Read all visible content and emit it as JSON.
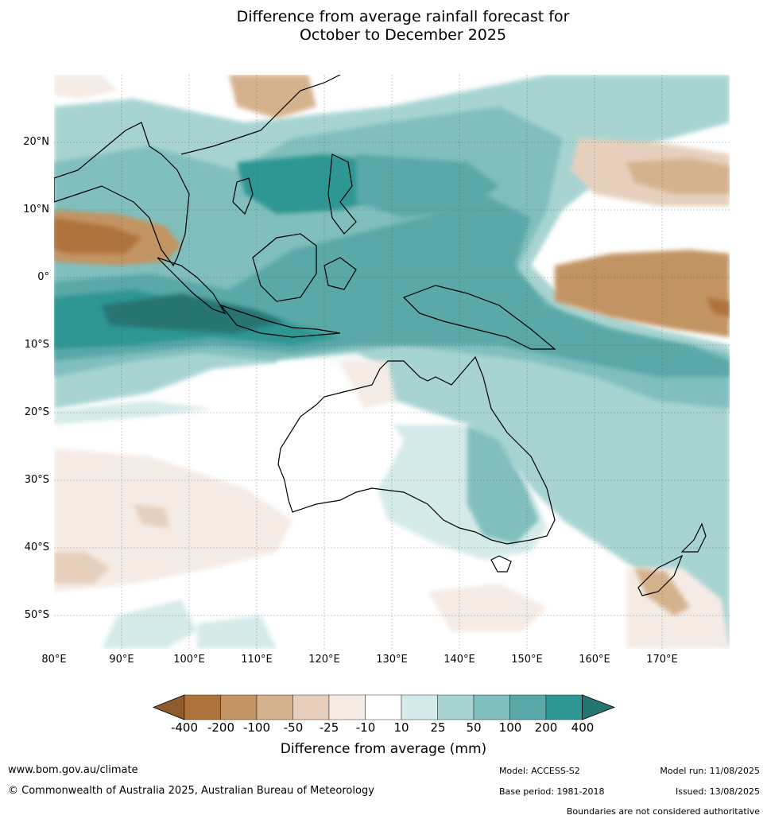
{
  "title": {
    "line1": "Difference from average rainfall forecast for",
    "line2": "October to December 2025"
  },
  "map": {
    "lat_labels": [
      "20°N",
      "10°N",
      "0°",
      "10°S",
      "20°S",
      "30°S",
      "40°S",
      "50°S"
    ],
    "lon_labels": [
      "80°E",
      "90°E",
      "100°E",
      "110°E",
      "120°E",
      "130°E",
      "140°E",
      "150°E",
      "160°E",
      "170°E"
    ]
  },
  "colorbar": {
    "tick_labels": [
      "-400",
      "-200",
      "-100",
      "-50",
      "-25",
      "-10",
      "10",
      "25",
      "50",
      "100",
      "200",
      "400"
    ],
    "colors": [
      "#8f5a2c",
      "#ae733d",
      "#c39463",
      "#d5b28e",
      "#e6d0bd",
      "#f4ebe5",
      "#ffffff",
      "#d5ebe9",
      "#a7d4d1",
      "#80bfbd",
      "#5aa8a8",
      "#2e9693",
      "#257572"
    ],
    "label": "Difference from average (mm)"
  },
  "footer": {
    "url": "www.bom.gov.au/climate",
    "copyright": "© Commonwealth of Australia 2025, Australian Bureau of Meteorology",
    "model": "Model: ACCESS-S2",
    "base_period": "Base period: 1981-2018",
    "model_run": "Model run: 11/08/2025",
    "issued": "Issued: 13/08/2025",
    "disclaimer": "Boundaries are not considered authoritative"
  }
}
